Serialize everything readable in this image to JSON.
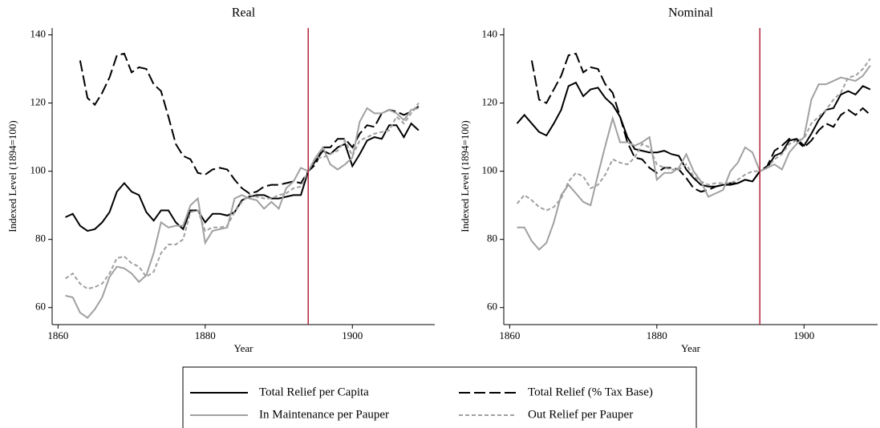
{
  "chart_data": [
    {
      "type": "line",
      "title": "Real",
      "x_label": "Year",
      "y_label": "Indexed Level (1894=100)",
      "x": [
        1861,
        1862,
        1863,
        1864,
        1865,
        1866,
        1867,
        1868,
        1869,
        1870,
        1871,
        1872,
        1873,
        1874,
        1875,
        1876,
        1877,
        1878,
        1879,
        1880,
        1881,
        1882,
        1883,
        1884,
        1885,
        1886,
        1887,
        1888,
        1889,
        1890,
        1891,
        1892,
        1893,
        1894,
        1895,
        1896,
        1897,
        1898,
        1899,
        1900,
        1901,
        1902,
        1903,
        1904,
        1905,
        1906,
        1907,
        1908,
        1909
      ],
      "xlim": [
        1859.2,
        1911.2
      ],
      "xticks": [
        1860,
        1880,
        1900
      ],
      "ylim": [
        55,
        142
      ],
      "yticks": [
        60,
        80,
        100,
        120,
        140
      ],
      "vline": 1894,
      "vline_color": "#b0243c",
      "series": [
        {
          "name": "Total Relief per Capita",
          "color": "#000000",
          "style": "solid",
          "values": [
            86.5,
            87.5,
            84,
            82.5,
            83,
            85,
            88,
            94,
            96.5,
            94,
            93,
            88,
            85.5,
            88.5,
            88.5,
            85,
            83,
            88.5,
            88.5,
            85,
            87.5,
            87.5,
            87,
            88,
            91.5,
            92.5,
            93,
            93,
            92,
            92,
            92.5,
            93,
            93,
            100,
            103,
            106,
            105,
            107,
            108,
            101.5,
            105,
            109,
            110,
            109.5,
            113.5,
            113.5,
            110,
            114,
            112
          ]
        },
        {
          "name": "Total Relief (% Tax Base)",
          "color": "#000000",
          "style": "longdash",
          "values": [
            null,
            null,
            132.5,
            121.5,
            119.5,
            123,
            127.5,
            134,
            134.5,
            129,
            130.5,
            130,
            125.5,
            123.5,
            116,
            108,
            104.5,
            103.5,
            99.5,
            99,
            100.5,
            101,
            100.5,
            97.5,
            95,
            93.5,
            94,
            95.5,
            96,
            96,
            96.5,
            97,
            96.5,
            100,
            102,
            107,
            107,
            109.5,
            109.5,
            107,
            111,
            113.5,
            113,
            117,
            118,
            117.5,
            116.5,
            117.5,
            119
          ]
        },
        {
          "name": "In Maintenance per Pauper",
          "color": "#a0a0a0",
          "style": "solid",
          "values": [
            63.5,
            63,
            58.5,
            57,
            59.5,
            63,
            69,
            72,
            71.5,
            70,
            67.5,
            69.5,
            76,
            85,
            83.5,
            84,
            84,
            90,
            92,
            79,
            82.5,
            83,
            83.5,
            92,
            93,
            92,
            91.5,
            89,
            91,
            89,
            95,
            97,
            101,
            100,
            104,
            107,
            102,
            100.5,
            102,
            104,
            114.5,
            118.5,
            117,
            117,
            118,
            117,
            115,
            118,
            118.5
          ]
        },
        {
          "name": "Out Relief per Pauper",
          "color": "#a0a0a0",
          "style": "shortdash",
          "values": [
            68.5,
            70,
            67,
            65.5,
            66,
            67,
            70,
            74.5,
            75,
            73,
            72,
            69,
            70.5,
            76,
            78.5,
            78.5,
            80,
            88,
            88.5,
            82.5,
            83.5,
            83.5,
            84,
            88,
            91,
            93,
            92.5,
            92,
            92,
            93,
            93.5,
            95,
            95.5,
            100,
            104,
            104,
            105,
            106,
            109,
            104.5,
            109,
            110,
            111,
            111.5,
            112,
            116,
            114,
            117,
            120
          ]
        }
      ]
    },
    {
      "type": "line",
      "title": "Nominal",
      "x_label": "Year",
      "y_label": "Indexed Level (1894=100)",
      "x": [
        1861,
        1862,
        1863,
        1864,
        1865,
        1866,
        1867,
        1868,
        1869,
        1870,
        1871,
        1872,
        1873,
        1874,
        1875,
        1876,
        1877,
        1878,
        1879,
        1880,
        1881,
        1882,
        1883,
        1884,
        1885,
        1886,
        1887,
        1888,
        1889,
        1890,
        1891,
        1892,
        1893,
        1894,
        1895,
        1896,
        1897,
        1898,
        1899,
        1900,
        1901,
        1902,
        1903,
        1904,
        1905,
        1906,
        1907,
        1908,
        1909
      ],
      "xlim": [
        1859.2,
        1910
      ],
      "xticks": [
        1860,
        1880,
        1900
      ],
      "ylim": [
        55,
        142
      ],
      "yticks": [
        60,
        80,
        100,
        120,
        140
      ],
      "vline": 1894,
      "vline_color": "#b0243c",
      "series": [
        {
          "color": "#000000",
          "style": "solid",
          "values": [
            114,
            116.5,
            114,
            111.5,
            110.5,
            114,
            118,
            125,
            126,
            122,
            124,
            124.5,
            121.5,
            119.5,
            116,
            110,
            106.5,
            106,
            105.5,
            105.5,
            106,
            105,
            104.5,
            100.5,
            98,
            96,
            95.5,
            95.5,
            96,
            96,
            96.5,
            97.5,
            97,
            100,
            101,
            104.5,
            105.5,
            109,
            109.5,
            107.5,
            111,
            115,
            118,
            118.5,
            122.5,
            123.5,
            122.5,
            125,
            124
          ]
        },
        {
          "color": "#000000",
          "style": "longdash",
          "values": [
            null,
            null,
            132.5,
            121,
            120,
            124,
            128,
            134,
            134.5,
            129,
            130.5,
            130,
            125.5,
            123,
            116,
            108.5,
            104,
            103.5,
            101,
            99.5,
            101,
            101,
            100.5,
            98,
            95,
            94,
            94.5,
            95.5,
            96,
            96.5,
            96.5,
            97.5,
            97,
            100,
            101.5,
            106,
            107.5,
            109.5,
            109,
            107,
            109,
            112,
            114,
            113,
            116.5,
            118,
            116.5,
            118.5,
            116.5
          ]
        },
        {
          "color": "#a0a0a0",
          "style": "solid",
          "values": [
            83.5,
            83.5,
            79.5,
            77,
            79,
            85,
            93,
            96,
            93.5,
            91,
            90,
            99,
            107.5,
            115.5,
            108.5,
            108.5,
            107.5,
            108.5,
            110,
            97.5,
            99.5,
            99.5,
            101,
            105,
            100,
            97,
            92.5,
            93.5,
            94.5,
            100,
            102.5,
            107,
            105.5,
            100,
            101,
            102,
            100.5,
            105.5,
            108,
            110,
            121,
            125.5,
            125.5,
            126.5,
            127.5,
            127,
            126.5,
            128,
            131
          ]
        },
        {
          "color": "#a0a0a0",
          "style": "shortdash",
          "values": [
            90.5,
            93,
            91.5,
            89.5,
            88.5,
            89.5,
            92,
            97,
            99.5,
            98.5,
            95,
            96,
            99,
            103.5,
            102.5,
            102,
            104,
            108,
            107,
            102,
            101,
            100.5,
            100.5,
            102,
            98.5,
            97,
            96,
            96.5,
            96.5,
            96.5,
            97.5,
            99,
            100,
            100,
            101,
            103.5,
            105,
            108,
            109,
            109.5,
            114,
            116,
            118,
            121,
            123,
            127.5,
            128,
            130,
            133
          ]
        }
      ]
    }
  ]
}
